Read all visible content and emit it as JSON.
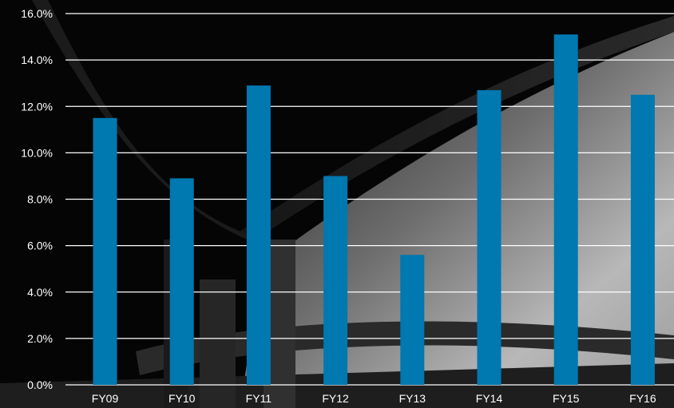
{
  "chart_data": {
    "type": "bar",
    "title": "",
    "xlabel": "",
    "ylabel": "",
    "categories": [
      "FY09",
      "FY10",
      "FY11",
      "FY12",
      "FY13",
      "FY14",
      "FY15",
      "FY16"
    ],
    "values": [
      11.5,
      8.9,
      12.9,
      9.0,
      5.6,
      12.7,
      15.1,
      12.5
    ],
    "ylim": [
      0,
      16
    ],
    "yticks": [
      "0.0%",
      "2.0%",
      "4.0%",
      "6.0%",
      "8.0%",
      "10.0%",
      "12.0%",
      "14.0%",
      "16.0%"
    ],
    "grid": true,
    "legend": "none",
    "colors": {
      "bar": "#0078B0",
      "grid": "#FFFFFF",
      "text": "#FFFFFF",
      "background": "#000000"
    }
  }
}
